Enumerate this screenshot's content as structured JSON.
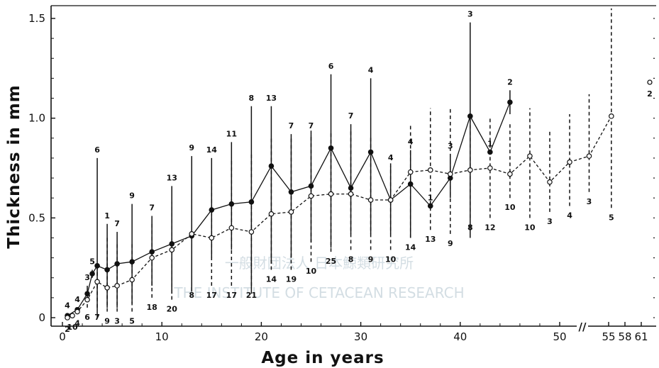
{
  "chart_data": {
    "type": "line",
    "xlabel": "Age in years",
    "ylabel": "Thickness in mm",
    "xlim": [
      -0.5,
      61.5
    ],
    "ylim": [
      -0.02,
      1.56
    ],
    "x_ticks": [
      0,
      10,
      20,
      30,
      40,
      50,
      55,
      58,
      61
    ],
    "y_ticks": [
      0,
      0.5,
      1.0,
      1.5
    ],
    "x_tick_labels": [
      "0",
      "10",
      "20",
      "30",
      "40",
      "50",
      "55",
      "58",
      "61"
    ],
    "y_tick_labels": [
      "0",
      "0.5",
      "1.0",
      "1.5"
    ],
    "axis_break_label": "//",
    "grid": false,
    "series": [
      {
        "style": "solid, filled circles",
        "points": [
          {
            "x": 0.5,
            "y": 0.01,
            "lo": 0.0,
            "hi": 0.02,
            "n": "4",
            "n_pos": "top"
          },
          {
            "x": 1.5,
            "y": 0.04,
            "lo": 0.03,
            "hi": 0.05,
            "n": "4",
            "n_pos": "top"
          },
          {
            "x": 2.5,
            "y": 0.12,
            "lo": 0.09,
            "hi": 0.16,
            "n": "3",
            "n_pos": "top"
          },
          {
            "x": 3.5,
            "y": 0.26,
            "lo": 0.0,
            "hi": 0.8,
            "n": "6",
            "n_pos": "top"
          },
          {
            "x": 3.0,
            "y": 0.22,
            "lo": 0.2,
            "hi": 0.24,
            "n": "5",
            "n_pos": "top"
          },
          {
            "x": 4.5,
            "y": 0.24,
            "lo": 0.05,
            "hi": 0.47,
            "n": "1",
            "n_pos": "top"
          },
          {
            "x": 5.5,
            "y": 0.27,
            "lo": 0.05,
            "hi": 0.43,
            "n": "7",
            "n_pos": "top"
          },
          {
            "x": 7.0,
            "y": 0.28,
            "lo": 0.07,
            "hi": 0.57,
            "n": "9",
            "n_pos": "top"
          },
          {
            "x": 9.0,
            "y": 0.33,
            "lo": 0.16,
            "hi": 0.51,
            "n": "7",
            "n_pos": "top"
          },
          {
            "x": 11.0,
            "y": 0.37,
            "lo": 0.12,
            "hi": 0.66,
            "n": "13",
            "n_pos": "top"
          },
          {
            "x": 13.0,
            "y": 0.41,
            "lo": 0.13,
            "hi": 0.81,
            "n": "9",
            "n_pos": "top"
          },
          {
            "x": 15.0,
            "y": 0.54,
            "lo": 0.3,
            "hi": 0.8,
            "n": "14",
            "n_pos": "top"
          },
          {
            "x": 17.0,
            "y": 0.57,
            "lo": 0.34,
            "hi": 0.88,
            "n": "11",
            "n_pos": "top"
          },
          {
            "x": 19.0,
            "y": 0.58,
            "lo": 0.12,
            "hi": 1.06,
            "n": "8",
            "n_pos": "top"
          },
          {
            "x": 21.0,
            "y": 0.76,
            "lo": 0.27,
            "hi": 1.06,
            "n": "13",
            "n_pos": "top"
          },
          {
            "x": 23.0,
            "y": 0.63,
            "lo": 0.3,
            "hi": 0.92,
            "n": "7",
            "n_pos": "top"
          },
          {
            "x": 25.0,
            "y": 0.66,
            "lo": 0.38,
            "hi": 0.92,
            "n": "7",
            "n_pos": "top"
          },
          {
            "x": 27.0,
            "y": 0.85,
            "lo": 0.35,
            "hi": 1.22,
            "n": "6",
            "n_pos": "top"
          },
          {
            "x": 29.0,
            "y": 0.65,
            "lo": 0.42,
            "hi": 0.97,
            "n": "7",
            "n_pos": "top"
          },
          {
            "x": 31.0,
            "y": 0.83,
            "lo": 0.42,
            "hi": 1.2,
            "n": "4",
            "n_pos": "top"
          },
          {
            "x": 33.0,
            "y": 0.59,
            "lo": 0.42,
            "hi": 0.76,
            "n": "4",
            "n_pos": "top"
          },
          {
            "x": 35.0,
            "y": 0.67,
            "lo": 0.4,
            "hi": 0.84,
            "n": "4",
            "n_pos": "top"
          },
          {
            "x": 37.0,
            "y": 0.56,
            "lo": 0.56,
            "hi": 0.56,
            "n": "1",
            "n_pos": "top"
          },
          {
            "x": 39.0,
            "y": 0.7,
            "lo": 0.6,
            "hi": 0.82,
            "n": "3",
            "n_pos": "top"
          },
          {
            "x": 41.0,
            "y": 1.01,
            "lo": 0.4,
            "hi": 1.48,
            "n": "3",
            "n_pos": "top"
          },
          {
            "x": 43.0,
            "y": 0.83,
            "lo": 0.83,
            "hi": 0.83,
            "n": "1",
            "n_pos": "top"
          },
          {
            "x": 45.0,
            "y": 1.08,
            "lo": 1.02,
            "hi": 1.14,
            "n": "2",
            "n_pos": "top"
          }
        ]
      },
      {
        "style": "dashed, open circles",
        "points": [
          {
            "x": 0.5,
            "y": 0.0,
            "lo": -0.01,
            "hi": 0.01,
            "n": "2",
            "n_pos": "bottom"
          },
          {
            "x": 1.0,
            "y": 0.01,
            "lo": 0.0,
            "hi": 0.02,
            "n": "10",
            "n_pos": "bottom"
          },
          {
            "x": 1.5,
            "y": 0.03,
            "lo": 0.02,
            "hi": 0.05,
            "n": "4",
            "n_pos": "bottom"
          },
          {
            "x": 2.5,
            "y": 0.09,
            "lo": 0.05,
            "hi": 0.13,
            "n": "6",
            "n_pos": "bottom"
          },
          {
            "x": 3.5,
            "y": 0.18,
            "lo": 0.05,
            "hi": 0.26,
            "n": "7",
            "n_pos": "bottom"
          },
          {
            "x": 4.5,
            "y": 0.15,
            "lo": 0.03,
            "hi": 0.41,
            "n": "9",
            "n_pos": "bottom"
          },
          {
            "x": 5.5,
            "y": 0.16,
            "lo": 0.03,
            "hi": 0.38,
            "n": "3",
            "n_pos": "bottom"
          },
          {
            "x": 7.0,
            "y": 0.19,
            "lo": 0.03,
            "hi": 0.38,
            "n": "5",
            "n_pos": "bottom"
          },
          {
            "x": 9.0,
            "y": 0.3,
            "lo": 0.1,
            "hi": 0.48,
            "n": "18",
            "n_pos": "bottom"
          },
          {
            "x": 11.0,
            "y": 0.34,
            "lo": 0.09,
            "hi": 0.58,
            "n": "20",
            "n_pos": "bottom"
          },
          {
            "x": 13.0,
            "y": 0.42,
            "lo": 0.16,
            "hi": 0.69,
            "n": "8",
            "n_pos": "bottom"
          },
          {
            "x": 15.0,
            "y": 0.4,
            "lo": 0.16,
            "hi": 0.69,
            "n": "17",
            "n_pos": "bottom"
          },
          {
            "x": 17.0,
            "y": 0.45,
            "lo": 0.16,
            "hi": 0.8,
            "n": "17",
            "n_pos": "bottom"
          },
          {
            "x": 19.0,
            "y": 0.43,
            "lo": 0.16,
            "hi": 0.83,
            "n": "21",
            "n_pos": "bottom"
          },
          {
            "x": 21.0,
            "y": 0.52,
            "lo": 0.24,
            "hi": 0.91,
            "n": "14",
            "n_pos": "bottom"
          },
          {
            "x": 23.0,
            "y": 0.53,
            "lo": 0.24,
            "hi": 0.91,
            "n": "19",
            "n_pos": "bottom"
          },
          {
            "x": 25.0,
            "y": 0.61,
            "lo": 0.28,
            "hi": 0.95,
            "n": "10",
            "n_pos": "bottom"
          },
          {
            "x": 27.0,
            "y": 0.62,
            "lo": 0.33,
            "hi": 0.93,
            "n": "25",
            "n_pos": "bottom"
          },
          {
            "x": 29.0,
            "y": 0.62,
            "lo": 0.34,
            "hi": 0.94,
            "n": "8",
            "n_pos": "bottom"
          },
          {
            "x": 31.0,
            "y": 0.59,
            "lo": 0.34,
            "hi": 0.91,
            "n": "9",
            "n_pos": "bottom"
          },
          {
            "x": 33.0,
            "y": 0.59,
            "lo": 0.34,
            "hi": 0.78,
            "n": "10",
            "n_pos": "bottom"
          },
          {
            "x": 35.0,
            "y": 0.73,
            "lo": 0.4,
            "hi": 0.97,
            "n": "14",
            "n_pos": "bottom"
          },
          {
            "x": 37.0,
            "y": 0.74,
            "lo": 0.44,
            "hi": 1.05,
            "n": "13",
            "n_pos": "bottom"
          },
          {
            "x": 39.0,
            "y": 0.72,
            "lo": 0.42,
            "hi": 1.05,
            "n": "9",
            "n_pos": "bottom"
          },
          {
            "x": 41.0,
            "y": 0.74,
            "lo": 0.5,
            "hi": 1.0,
            "n": "8",
            "n_pos": "bottom"
          },
          {
            "x": 43.0,
            "y": 0.75,
            "lo": 0.5,
            "hi": 1.0,
            "n": "12",
            "n_pos": "bottom"
          },
          {
            "x": 45.0,
            "y": 0.72,
            "lo": 0.6,
            "hi": 0.98,
            "n": "10",
            "n_pos": "bottom"
          },
          {
            "x": 47.0,
            "y": 0.81,
            "lo": 0.5,
            "hi": 1.05,
            "n": "10",
            "n_pos": "bottom"
          },
          {
            "x": 49.0,
            "y": 0.68,
            "lo": 0.53,
            "hi": 0.94,
            "n": "3",
            "n_pos": "bottom"
          },
          {
            "x": 51.0,
            "y": 0.78,
            "lo": 0.56,
            "hi": 1.02,
            "n": "4",
            "n_pos": "bottom"
          },
          {
            "x": 53.0,
            "y": 0.81,
            "lo": 0.63,
            "hi": 1.12,
            "n": "3",
            "n_pos": "bottom"
          },
          {
            "x": 55.5,
            "y": 1.01,
            "lo": 0.55,
            "hi": 1.55,
            "n": "5",
            "n_pos": "bottom"
          }
        ]
      }
    ],
    "extra_points": [
      {
        "x": 61.0,
        "y": 1.18,
        "n": "2",
        "marker": "open"
      }
    ]
  },
  "watermark": {
    "line1": "一般財団法人 日本鯨類研究所",
    "line2": "THE INSTITUTE OF CETACEAN RESEARCH"
  },
  "colors": {
    "ink": "#111111",
    "watermark": "#9fb6c2"
  }
}
